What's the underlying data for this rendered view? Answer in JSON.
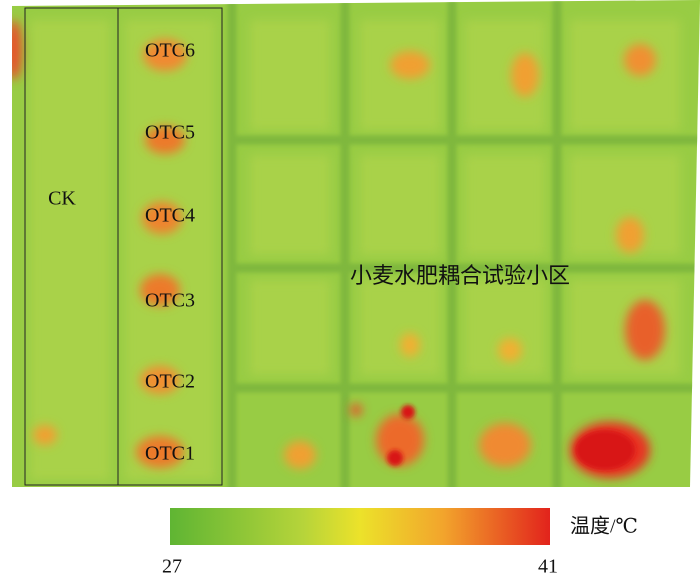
{
  "image": {
    "labels": {
      "ck": "CK",
      "otc": [
        "OTC6",
        "OTC5",
        "OTC4",
        "OTC3",
        "OTC2",
        "OTC1"
      ],
      "plots": "小麦水肥耦合试验小区"
    }
  },
  "colorbar": {
    "label": "温度/℃",
    "min": 27,
    "max": 41
  }
}
